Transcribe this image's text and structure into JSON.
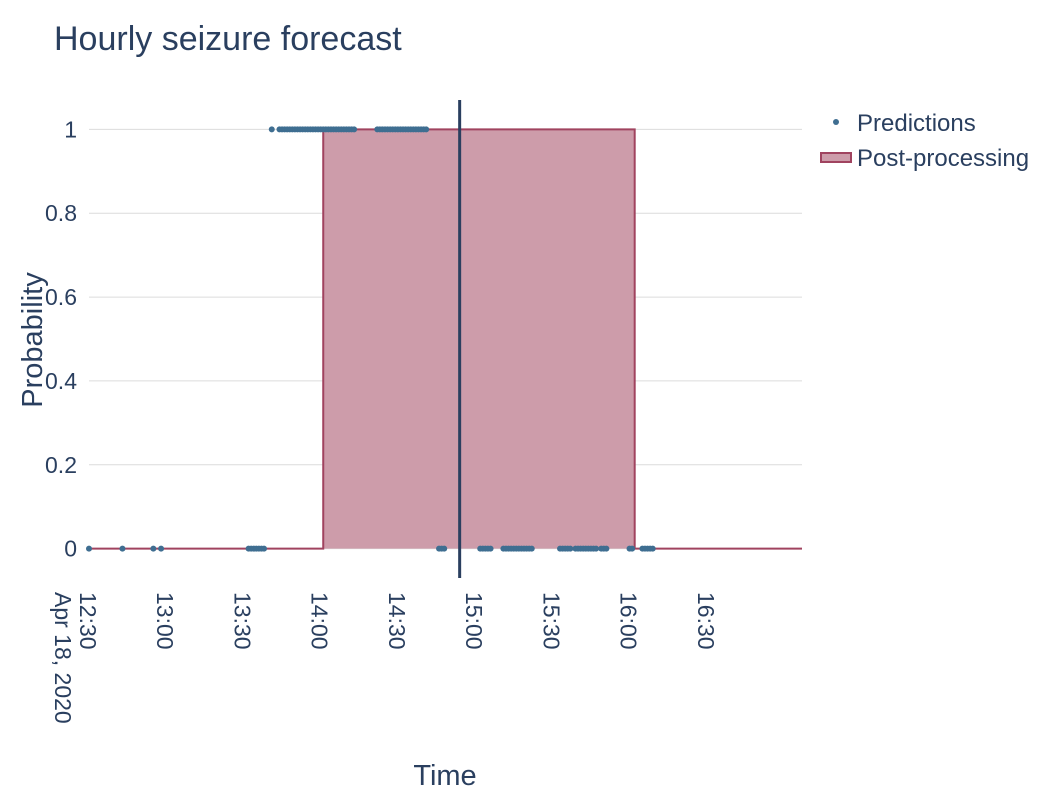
{
  "chart_data": {
    "type": "scatter",
    "title": "Hourly seizure forecast",
    "xlabel": "Time",
    "ylabel": "Probability",
    "xlim": [
      "2020-04-18 12:30",
      "2020-04-18 17:07"
    ],
    "ylim": [
      -0.07,
      1.07
    ],
    "yticks": [
      0,
      0.2,
      0.4,
      0.6,
      0.8,
      1
    ],
    "ytick_labels": [
      "0",
      "0.2",
      "0.4",
      "0.6",
      "0.8",
      "1"
    ],
    "xticks": [
      "12:30",
      "13:00",
      "13:30",
      "14:00",
      "14:30",
      "15:00",
      "15:30",
      "16:00",
      "16:30"
    ],
    "xtick_first_date_label": "Apr 18, 2020",
    "grid": true,
    "legend_position": "top-right",
    "colors": {
      "predictions": "#3f6e91",
      "post_processing_line": "#a0435f",
      "post_processing_fill": "#cd9caa",
      "current_time_line": "#2a3f5f"
    },
    "current_time_marker": "14:54",
    "series": [
      {
        "name": "Predictions",
        "mode": "markers",
        "x": [
          "12:30",
          "12:43",
          "12:55",
          "12:58",
          "13:32",
          "13:33",
          "13:34",
          "13:35",
          "13:36",
          "13:37",
          "13:38",
          "13:41",
          "13:44",
          "13:45",
          "13:46",
          "13:47",
          "13:48",
          "13:49",
          "13:50",
          "13:51",
          "13:52",
          "13:53",
          "13:54",
          "13:55",
          "13:56",
          "13:57",
          "13:58",
          "13:59",
          "14:00",
          "14:01",
          "14:02",
          "14:03",
          "14:04",
          "14:05",
          "14:06",
          "14:07",
          "14:08",
          "14:09",
          "14:10",
          "14:11",
          "14:12",
          "14:13",
          "14:22",
          "14:23",
          "14:24",
          "14:25",
          "14:26",
          "14:27",
          "14:28",
          "14:29",
          "14:30",
          "14:31",
          "14:32",
          "14:33",
          "14:34",
          "14:35",
          "14:36",
          "14:37",
          "14:38",
          "14:39",
          "14:40",
          "14:41",
          "14:46",
          "14:47",
          "14:48",
          "15:02",
          "15:03",
          "15:04",
          "15:05",
          "15:06",
          "15:11",
          "15:12",
          "15:13",
          "15:14",
          "15:15",
          "15:16",
          "15:17",
          "15:18",
          "15:19",
          "15:20",
          "15:21",
          "15:22",
          "15:33",
          "15:34",
          "15:35",
          "15:36",
          "15:37",
          "15:39",
          "15:40",
          "15:41",
          "15:42",
          "15:43",
          "15:44",
          "15:45",
          "15:46",
          "15:47",
          "15:49",
          "15:50",
          "15:51",
          "16:00",
          "16:01",
          "16:05",
          "16:06",
          "16:07",
          "16:08",
          "16:09"
        ],
        "y": [
          0,
          0,
          0,
          0,
          0,
          0,
          0,
          0,
          0,
          0,
          0,
          1,
          1,
          1,
          1,
          1,
          1,
          1,
          1,
          1,
          1,
          1,
          1,
          1,
          1,
          1,
          1,
          1,
          1,
          1,
          1,
          1,
          1,
          1,
          1,
          1,
          1,
          1,
          1,
          1,
          1,
          1,
          1,
          1,
          1,
          1,
          1,
          1,
          1,
          1,
          1,
          1,
          1,
          1,
          1,
          1,
          1,
          1,
          1,
          1,
          1,
          1,
          0,
          0,
          0,
          0,
          0,
          0,
          0,
          0,
          0,
          0,
          0,
          0,
          0,
          0,
          0,
          0,
          0,
          0,
          0,
          0,
          0,
          0,
          0,
          0,
          0,
          0,
          0,
          0,
          0,
          0,
          0,
          0,
          0,
          0,
          0,
          0,
          0,
          0,
          0,
          0,
          0,
          0,
          0,
          0
        ]
      },
      {
        "name": "Post-processing",
        "mode": "lines+fill",
        "x": [
          "12:30",
          "14:01",
          "14:01",
          "16:02",
          "16:02",
          "17:07"
        ],
        "y": [
          0,
          0,
          1,
          1,
          0,
          0
        ]
      }
    ]
  }
}
